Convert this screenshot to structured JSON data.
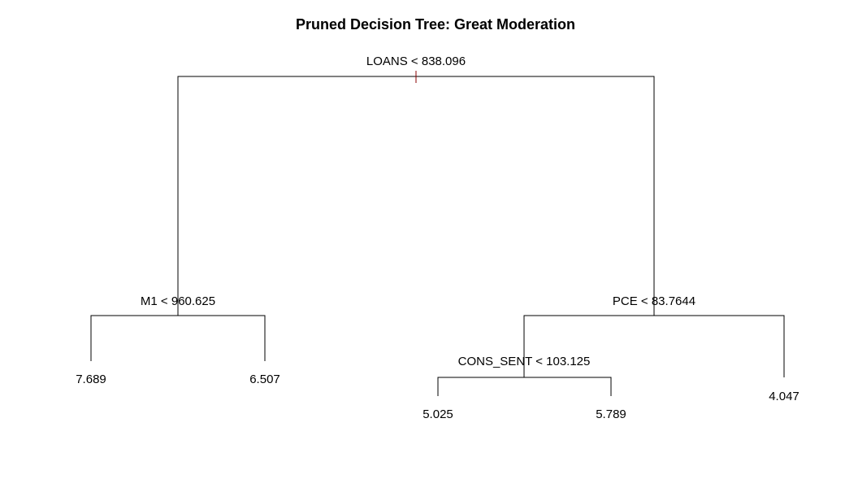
{
  "title": "Pruned Decision Tree: Great Moderation",
  "tree": {
    "split": "LOANS < 838.096",
    "left": {
      "split": "M1 < 960.625",
      "left": {
        "leaf": "7.689"
      },
      "right": {
        "leaf": "6.507"
      }
    },
    "right": {
      "split": "PCE < 83.7644",
      "left": {
        "split": "CONS_SENT < 103.125",
        "left": {
          "leaf": "5.025"
        },
        "right": {
          "leaf": "5.789"
        }
      },
      "right": {
        "leaf": "4.047"
      }
    }
  },
  "colors": {
    "lines": "#000000",
    "root_tick": "#8b0000"
  }
}
